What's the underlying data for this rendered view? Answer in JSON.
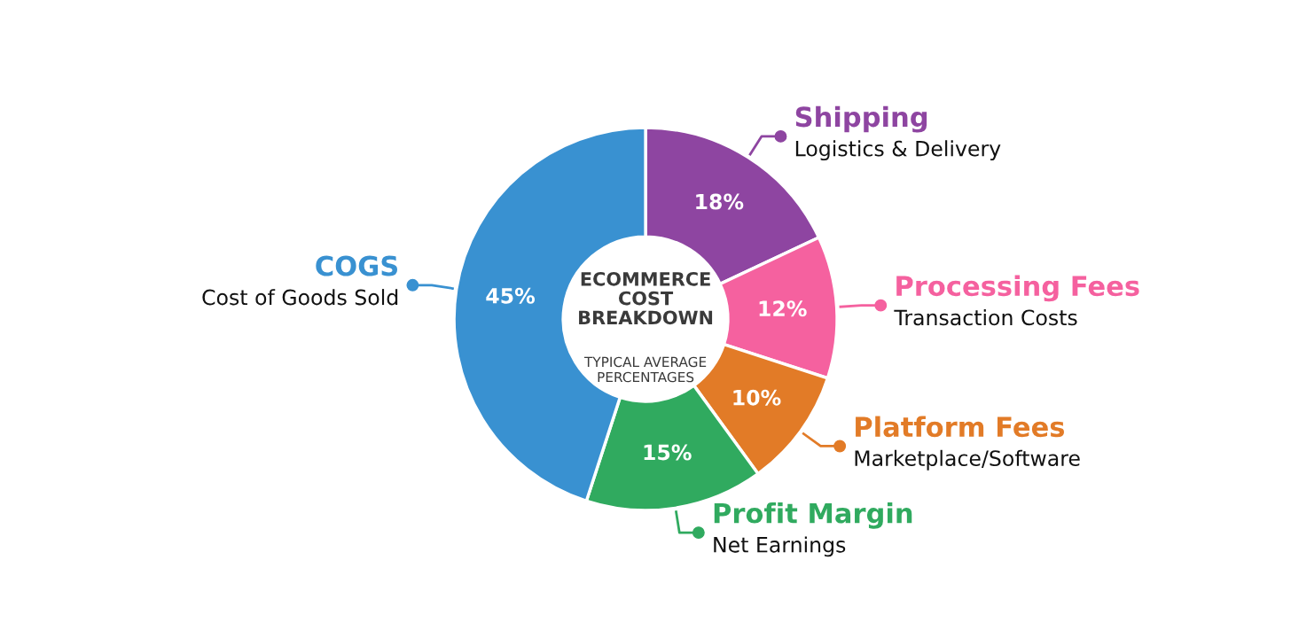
{
  "chart_data": {
    "type": "donut",
    "title": "ECOMMERCE COST BREAKDOWN",
    "subtitle": "TYPICAL AVERAGE PERCENTAGES",
    "categories": [
      "Shipping",
      "Processing Fees",
      "Platform Fees",
      "Profit Margin",
      "COGS"
    ],
    "values": [
      18,
      12,
      10,
      15,
      45
    ],
    "colors": [
      "#8e45a1",
      "#f5619f",
      "#e27b27",
      "#30aa5f",
      "#3991d1"
    ],
    "annotations": [
      "Logistics & Delivery",
      "Transaction Costs",
      "Marketplace/Software",
      "Net Earnings",
      "Cost of Goods Sold"
    ],
    "value_labels": [
      "18%",
      "12%",
      "10%",
      "15%",
      "45%"
    ],
    "legend": "right"
  }
}
